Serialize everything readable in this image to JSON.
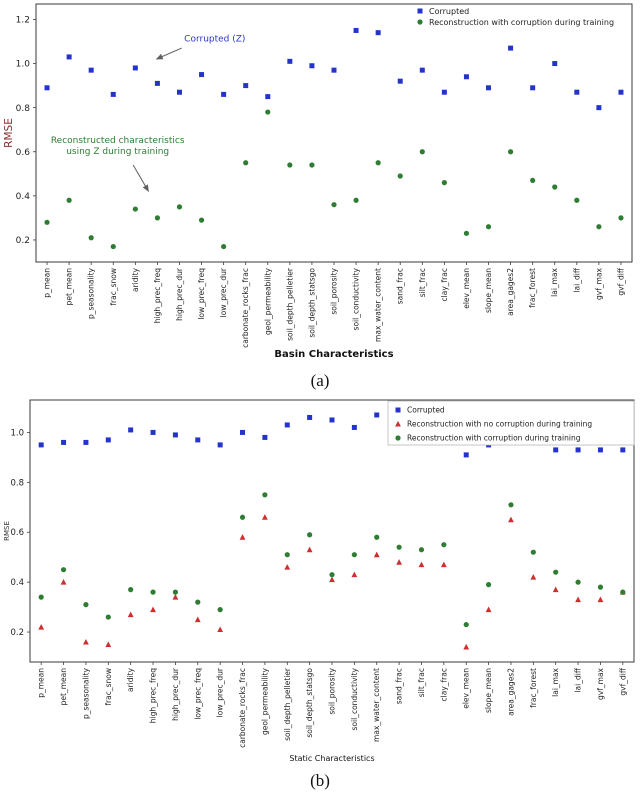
{
  "figure": {
    "captions": [
      "(a)",
      "(b)"
    ]
  },
  "chart_data": [
    {
      "type": "scatter",
      "title": "",
      "xlabel": "Basin Characteristics",
      "ylabel": "RMSE",
      "ylabel_color": "#8b3030",
      "ylim": [
        0.1,
        1.27
      ],
      "yticks": [
        0.2,
        0.4,
        0.6,
        0.8,
        1.0,
        1.2
      ],
      "grid": false,
      "legend_position": "upper right",
      "categories": [
        "p_mean",
        "pet_mean",
        "p_seasonality",
        "frac_snow",
        "aridity",
        "high_prec_freq",
        "high_prec_dur",
        "low_prec_freq",
        "low_prec_dur",
        "carbonate_rocks_frac",
        "geol_permeability",
        "soil_depth_pelletier",
        "soil_depth_statsgo",
        "soil_porosity",
        "soil_conductivity",
        "max_water_content",
        "sand_frac",
        "silt_frac",
        "clay_frac",
        "elev_mean",
        "slope_mean",
        "area_gages2",
        "frac_forest",
        "lai_max",
        "lai_diff",
        "gvf_max",
        "gvf_diff"
      ],
      "series": [
        {
          "name": "Corrupted",
          "marker": "square",
          "color": "#2433cc",
          "values": [
            0.89,
            1.03,
            0.97,
            0.86,
            0.98,
            0.91,
            0.87,
            0.95,
            0.86,
            0.9,
            0.85,
            1.01,
            0.99,
            0.97,
            1.15,
            1.14,
            0.92,
            0.97,
            0.87,
            0.94,
            0.89,
            1.07,
            0.89,
            1.0,
            0.87,
            0.8,
            0.87
          ]
        },
        {
          "name": "Reconstruction with corruption during training",
          "marker": "circle",
          "color": "#2e7d32",
          "values": [
            0.28,
            0.38,
            0.21,
            0.17,
            0.34,
            0.3,
            0.35,
            0.29,
            0.17,
            0.55,
            0.78,
            0.54,
            0.54,
            0.36,
            0.38,
            0.55,
            0.49,
            0.6,
            0.46,
            0.23,
            0.26,
            0.6,
            0.47,
            0.44,
            0.38,
            0.26,
            0.3
          ]
        }
      ],
      "annotations": [
        {
          "lines": [
            "Corrupted (Z)"
          ],
          "color": "#2a35cc",
          "anchor": "middle",
          "label_xi": 7.6,
          "label_val": 1.1,
          "from_xi": 6.1,
          "from_val": 1.07,
          "to_xi": 4.95,
          "to_val": 1.02
        },
        {
          "lines": [
            "Reconstructed characteristics",
            "using Z during training"
          ],
          "color": "#2e7d32",
          "anchor": "middle",
          "label_xi": 3.2,
          "label_val": 0.64,
          "from_xi": 3.9,
          "from_val": 0.54,
          "to_xi": 4.6,
          "to_val": 0.42
        }
      ]
    },
    {
      "type": "scatter",
      "title": "",
      "xlabel": "Static Characteristics",
      "ylabel": "RMSE",
      "ylabel_color": "#333333",
      "ylim": [
        0.08,
        1.13
      ],
      "yticks": [
        0.2,
        0.4,
        0.6,
        0.8,
        1.0
      ],
      "grid": false,
      "legend_position": "upper right",
      "categories": [
        "p_mean",
        "pet_mean",
        "p_seasonality",
        "frac_snow",
        "aridity",
        "high_prec_freq",
        "high_prec_dur",
        "low_prec_freq",
        "low_prec_dur",
        "carbonate_rocks_frac",
        "geol_permeability",
        "soil_depth_pelletier",
        "soil_depth_statsgo",
        "soil_porosity",
        "soil_conductivity",
        "max_water_content",
        "sand_frac",
        "silt_frac",
        "clay_frac",
        "elev_mean",
        "slope_mean",
        "area_gages2",
        "frac_forest",
        "lai_max",
        "lai_diff",
        "gvf_max",
        "gvf_diff"
      ],
      "series": [
        {
          "name": "Corrupted",
          "marker": "square",
          "color": "#2433cc",
          "values": [
            0.95,
            0.96,
            0.96,
            0.97,
            1.01,
            1.0,
            0.99,
            0.97,
            0.95,
            1.0,
            0.98,
            1.03,
            1.06,
            1.05,
            1.02,
            1.07,
            1.08,
            1.08,
            1.03,
            0.91,
            0.95,
            1.05,
            0.97,
            0.93,
            0.93,
            0.93,
            0.93
          ]
        },
        {
          "name": "Reconstruction with no corruption during training",
          "marker": "triangle",
          "color": "#cf2e2e",
          "values": [
            0.22,
            0.4,
            0.16,
            0.15,
            0.27,
            0.29,
            0.34,
            0.25,
            0.21,
            0.58,
            0.66,
            0.46,
            0.53,
            0.41,
            0.43,
            0.51,
            0.48,
            0.47,
            0.47,
            0.14,
            0.29,
            0.65,
            0.42,
            0.37,
            0.33,
            0.33,
            0.36
          ]
        },
        {
          "name": "Reconstruction with corruption during training",
          "marker": "circle",
          "color": "#2e7d32",
          "values": [
            0.34,
            0.45,
            0.31,
            0.26,
            0.37,
            0.36,
            0.36,
            0.32,
            0.29,
            0.66,
            0.75,
            0.51,
            0.59,
            0.43,
            0.51,
            0.58,
            0.54,
            0.53,
            0.55,
            0.23,
            0.39,
            0.71,
            0.52,
            0.44,
            0.4,
            0.38,
            0.36
          ]
        }
      ],
      "annotations": []
    }
  ]
}
